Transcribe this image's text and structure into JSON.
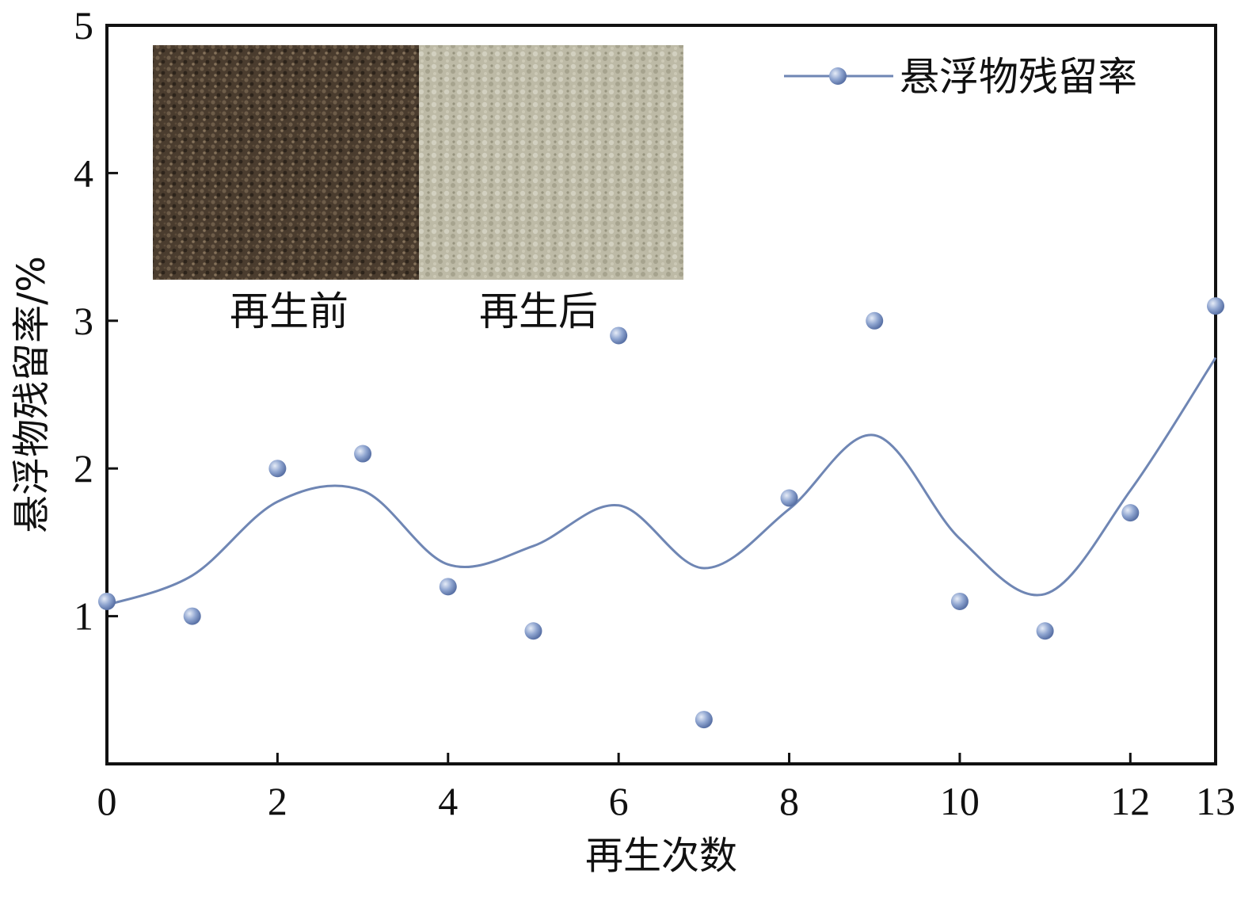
{
  "chart_data": {
    "type": "scatter",
    "xlabel": "再生次数",
    "ylabel": "悬浮物残留率/%",
    "xlim": [
      0,
      13
    ],
    "ylim": [
      0,
      5
    ],
    "xticks": [
      "0",
      "2",
      "4",
      "6",
      "8",
      "10",
      "12",
      "13"
    ],
    "yticks": [
      "1",
      "2",
      "3",
      "4",
      "5"
    ],
    "grid": false,
    "legend_position": "top-right",
    "series": [
      {
        "name": "悬浮物残留率",
        "color": "#6f86b4",
        "marker_color": "#8fa5d0",
        "x": [
          0,
          1,
          2,
          3,
          4,
          5,
          6,
          7,
          8,
          9,
          10,
          11,
          12,
          13
        ],
        "y": [
          1.1,
          1.0,
          2.0,
          2.1,
          1.2,
          0.9,
          2.9,
          0.3,
          1.8,
          3.0,
          1.1,
          0.9,
          1.7,
          3.1
        ]
      }
    ],
    "inset": {
      "captions": [
        "再生前",
        "再生后"
      ],
      "before_color": "#4a3c2e",
      "after_color": "#bdbaa6"
    }
  }
}
